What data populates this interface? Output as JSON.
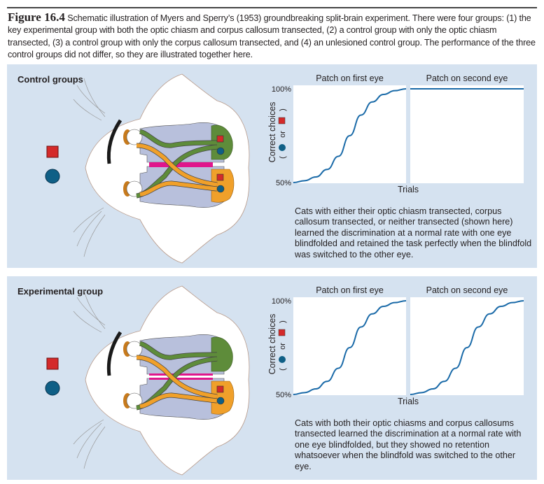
{
  "caption": {
    "figure_label": "Figure 16.4",
    "text": "Schematic illustration of Myers and Sperry’s (1953) groundbreaking split-brain experiment. There were four groups: (1) the key experimental group with both the optic chiasm and corpus callosum transected, (2) a control group with only the optic chiasm transected, (3) a control group with only the corpus callosum transected, and (4) an unlesioned control group. The performance of the three control groups did not differ, so they are illustrated together here."
  },
  "colors": {
    "panel_bg": "#d5e2f0",
    "curve": "#1a6aa8",
    "brain": "#b8c0dc",
    "green_pathway": "#5e8c3a",
    "orange_pathway": "#f0a02a",
    "corpus_callosum": "#e0168c",
    "red_square": "#d42a2a",
    "blue_circle": "#0f5f86",
    "blindfold": "#1a1a1a"
  },
  "panels": [
    {
      "title": "Control groups",
      "description": "Cats with either their optic chiasm transected, corpus callosum transected, or neither transected (shown here) learned the discrimination at a normal rate with one eye blindfolded and retained the task perfectly when the blindfold was switched to the other eye."
    },
    {
      "title": "Experimental group",
      "description": "Cats with both their optic chiasms and corpus callosums transected learned the discrimination at a normal rate with one eye blindfolded, but they showed no retention whatsoever when the blindfold was switched to the other eye."
    }
  ],
  "chart_data": [
    {
      "type": "line",
      "ylabel": "Correct choices",
      "ylabel_sub": [
        "(",
        "or",
        ")"
      ],
      "xlabel": "Trials",
      "yticks": [
        "100%",
        "50%"
      ],
      "ylim": [
        50,
        100
      ],
      "panels": [
        {
          "title": "Patch on first eye",
          "y": [
            50,
            51,
            53,
            57,
            64,
            75,
            86,
            93,
            97,
            99,
            100
          ]
        },
        {
          "title": "Patch on second eye",
          "y": [
            100,
            100,
            100,
            100,
            100,
            100,
            100,
            100,
            100,
            100,
            100
          ]
        }
      ]
    },
    {
      "type": "line",
      "ylabel": "Correct choices",
      "ylabel_sub": [
        "(",
        "or",
        ")"
      ],
      "xlabel": "Trials",
      "yticks": [
        "100%",
        "50%"
      ],
      "ylim": [
        50,
        100
      ],
      "panels": [
        {
          "title": "Patch on first eye",
          "y": [
            50,
            51,
            53,
            57,
            64,
            75,
            86,
            93,
            97,
            99,
            100
          ]
        },
        {
          "title": "Patch on second eye",
          "y": [
            50,
            51,
            53,
            57,
            64,
            75,
            86,
            93,
            97,
            99,
            100
          ]
        }
      ]
    }
  ]
}
